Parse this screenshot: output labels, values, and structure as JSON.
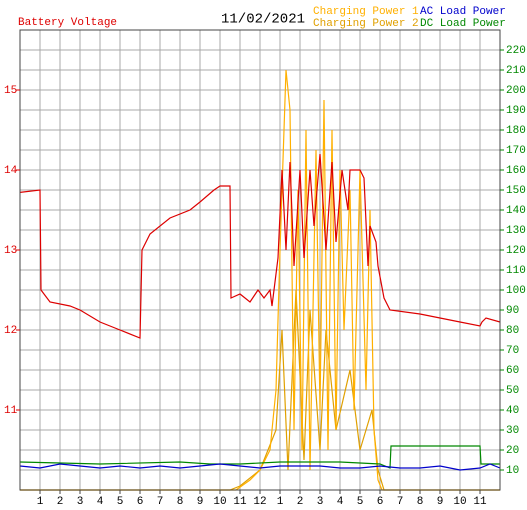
{
  "chart_data": {
    "type": "line",
    "title": "11/02/2021",
    "xlim": [
      0,
      24
    ],
    "xticks": [
      1,
      2,
      3,
      4,
      5,
      6,
      7,
      8,
      9,
      10,
      11,
      12,
      {
        "value": 13,
        "label": "1"
      },
      {
        "value": 14,
        "label": "2"
      },
      {
        "value": 15,
        "label": "3"
      },
      {
        "value": 16,
        "label": "4"
      },
      {
        "value": 17,
        "label": "5"
      },
      {
        "value": 18,
        "label": "6"
      },
      {
        "value": 19,
        "label": "7"
      },
      {
        "value": 20,
        "label": "8"
      },
      {
        "value": 21,
        "label": "9"
      },
      {
        "value": 22,
        "label": "10"
      },
      {
        "value": 23,
        "label": "11"
      }
    ],
    "ylim": [
      10,
      15.75
    ],
    "yticks": [
      11,
      12,
      13,
      14,
      15
    ],
    "y2lim": [
      0,
      230
    ],
    "y2ticks": [
      10,
      20,
      30,
      40,
      50,
      60,
      70,
      80,
      90,
      100,
      110,
      120,
      130,
      140,
      150,
      160,
      170,
      180,
      190,
      200,
      210,
      220
    ],
    "grid": true,
    "series": [
      {
        "name": "Battery Voltage",
        "color": "#dd0000",
        "axis": "y",
        "x": [
          0,
          1,
          1.05,
          1.5,
          2.5,
          3,
          4,
          5,
          6,
          6.1,
          6.5,
          7.5,
          8.5,
          9,
          9.7,
          10,
          10.5,
          10.55,
          11,
          11.5,
          11.9,
          12.2,
          12.5,
          12.6,
          12.9,
          13.1,
          13.3,
          13.5,
          13.7,
          14,
          14.2,
          14.5,
          14.7,
          15,
          15.3,
          15.6,
          15.8,
          16.1,
          16.4,
          16.5,
          17,
          17.2,
          17.4,
          17.5,
          17.8,
          17.9,
          18.2,
          18.5,
          20,
          21,
          22,
          23,
          23.1,
          23.3,
          24
        ],
        "values": [
          13.72,
          13.75,
          12.5,
          12.35,
          12.3,
          12.25,
          12.1,
          12.0,
          11.9,
          13.0,
          13.2,
          13.4,
          13.5,
          13.6,
          13.75,
          13.8,
          13.8,
          12.4,
          12.45,
          12.35,
          12.5,
          12.4,
          12.5,
          12.3,
          12.9,
          14.0,
          13.0,
          14.1,
          12.8,
          14.0,
          12.9,
          14.0,
          13.3,
          14.2,
          13.0,
          14.1,
          13.1,
          14.0,
          13.5,
          14.0,
          14.0,
          13.9,
          12.8,
          13.3,
          13.1,
          12.8,
          12.4,
          12.25,
          12.2,
          12.15,
          12.1,
          12.05,
          12.1,
          12.15,
          12.1
        ]
      },
      {
        "name": "Charging Power 1",
        "color": "#ffb000",
        "axis": "y2",
        "x": [
          0,
          10.8,
          11.5,
          12,
          12.5,
          12.8,
          13,
          13.3,
          13.5,
          13.7,
          13.9,
          14.1,
          14.3,
          14.5,
          14.8,
          15.0,
          15.2,
          15.4,
          15.6,
          15.8,
          16.0,
          16.2,
          16.5,
          16.7,
          17.0,
          17.3,
          17.5,
          17.7,
          17.9,
          18.1,
          24
        ],
        "values": [
          0,
          0,
          5,
          10,
          20,
          50,
          120,
          210,
          190,
          30,
          150,
          20,
          180,
          10,
          170,
          40,
          195,
          20,
          180,
          30,
          160,
          80,
          150,
          40,
          160,
          50,
          140,
          30,
          5,
          0,
          0
        ]
      },
      {
        "name": "Charging Power 2",
        "color": "#e0a000",
        "axis": "y2",
        "x": [
          0,
          10.5,
          11,
          12,
          12.8,
          13.1,
          13.4,
          13.8,
          14.2,
          14.5,
          15,
          15.3,
          15.8,
          16.5,
          17,
          17.6,
          17.9,
          18.2,
          24
        ],
        "values": [
          0,
          0,
          2,
          10,
          30,
          80,
          10,
          100,
          15,
          90,
          20,
          80,
          30,
          60,
          20,
          40,
          10,
          0,
          0
        ]
      },
      {
        "name": "AC Load Power",
        "color": "#0000cc",
        "axis": "y2",
        "x": [
          0,
          1,
          2,
          3,
          4,
          5,
          6,
          7,
          8,
          9,
          10,
          11,
          12,
          13,
          14,
          15,
          16,
          17,
          18,
          19,
          20,
          21,
          22,
          23,
          23.5,
          24
        ],
        "values": [
          12,
          11,
          13,
          12,
          11,
          12,
          11,
          12,
          11,
          12,
          13,
          12,
          11,
          12,
          12,
          12,
          11,
          11,
          12,
          11,
          11,
          12,
          10,
          11,
          13,
          11
        ]
      },
      {
        "name": "DC Load Power",
        "color": "#008800",
        "axis": "y2",
        "x": [
          0,
          4,
          8,
          9.5,
          11,
          13,
          16,
          18,
          18.5,
          18.55,
          23,
          23.05,
          24
        ],
        "values": [
          14,
          13,
          14,
          13,
          13,
          14,
          14,
          13,
          11,
          22,
          22,
          13,
          13
        ]
      }
    ]
  }
}
